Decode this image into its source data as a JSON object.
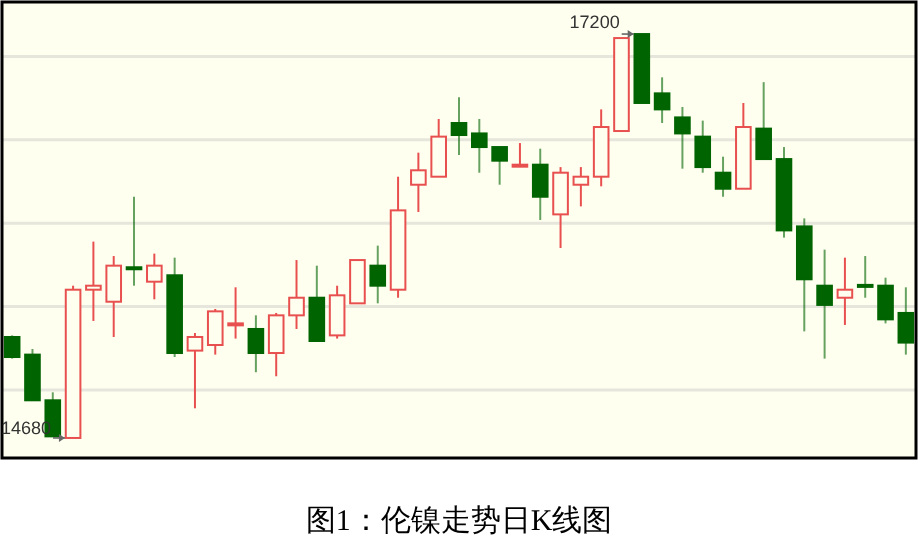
{
  "chart_data": {
    "type": "candlestick",
    "categories": [
      null,
      null,
      null,
      null,
      null,
      null,
      null,
      null,
      null,
      null,
      null,
      null,
      null,
      null,
      null,
      null,
      null,
      null,
      null,
      null,
      null,
      null,
      null,
      null,
      null,
      null,
      null,
      null,
      null,
      null,
      null,
      null,
      null,
      null,
      null,
      null,
      null,
      null,
      null,
      null,
      null,
      null,
      null,
      null,
      null
    ],
    "ohlc": [
      [
        15310,
        15320,
        15175,
        15185
      ],
      [
        15200,
        15235,
        14915,
        14915
      ],
      [
        14915,
        14965,
        14690,
        14690
      ],
      [
        14680,
        15630,
        14680,
        15605
      ],
      [
        15605,
        15905,
        15410,
        15630
      ],
      [
        15530,
        15815,
        15310,
        15755
      ],
      [
        15745,
        16185,
        15630,
        15740
      ],
      [
        15655,
        15830,
        15545,
        15755
      ],
      [
        15695,
        15805,
        15185,
        15210
      ],
      [
        15225,
        15335,
        14865,
        15310
      ],
      [
        15260,
        15485,
        15200,
        15470
      ],
      [
        15390,
        15620,
        15300,
        15395
      ],
      [
        15360,
        15445,
        15090,
        15210
      ],
      [
        15210,
        15460,
        15065,
        15445
      ],
      [
        15445,
        15790,
        15360,
        15555
      ],
      [
        15555,
        15755,
        15285,
        15285
      ],
      [
        15320,
        15630,
        15300,
        15570
      ],
      [
        15520,
        15790,
        15520,
        15790
      ],
      [
        15755,
        15880,
        15520,
        15630
      ],
      [
        15605,
        16310,
        15555,
        16100
      ],
      [
        16260,
        16460,
        16090,
        16350
      ],
      [
        16310,
        16670,
        16310,
        16560
      ],
      [
        16645,
        16805,
        16445,
        16570
      ],
      [
        16580,
        16670,
        16335,
        16495
      ],
      [
        16495,
        16495,
        16260,
        16410
      ],
      [
        16380,
        16520,
        16370,
        16385
      ],
      [
        16385,
        16485,
        16040,
        16185
      ],
      [
        16075,
        16370,
        15865,
        16335
      ],
      [
        16260,
        16370,
        16125,
        16310
      ],
      [
        16310,
        16730,
        16250,
        16620
      ],
      [
        16595,
        17175,
        16595,
        17175
      ],
      [
        17200,
        17200,
        16770,
        16770
      ],
      [
        16830,
        16930,
        16645,
        16730
      ],
      [
        16680,
        16745,
        16360,
        16580
      ],
      [
        16560,
        16660,
        16335,
        16370
      ],
      [
        16335,
        16435,
        16185,
        16235
      ],
      [
        16235,
        16770,
        16235,
        16620
      ],
      [
        16610,
        16900,
        16420,
        16420
      ],
      [
        16420,
        16495,
        15930,
        15975
      ],
      [
        16000,
        16050,
        15345,
        15670
      ],
      [
        15630,
        15855,
        15175,
        15510
      ],
      [
        15555,
        15805,
        15385,
        15605
      ],
      [
        15635,
        15815,
        15555,
        15630
      ],
      [
        15630,
        15680,
        15395,
        15420
      ],
      [
        15460,
        15620,
        15200,
        15275
      ]
    ],
    "colors": [
      "#006400",
      "#006400",
      "#006400",
      "#e8504f",
      "#e8504f",
      "#e8504f",
      "#006400",
      "#e8504f",
      "#006400",
      "#e8504f",
      "#e8504f",
      "#e8504f",
      "#006400",
      "#e8504f",
      "#e8504f",
      "#006400",
      "#e8504f",
      "#e8504f",
      "#006400",
      "#e8504f",
      "#e8504f",
      "#e8504f",
      "#006400",
      "#006400",
      "#006400",
      "#e8504f",
      "#006400",
      "#e8504f",
      "#e8504f",
      "#e8504f",
      "#e8504f",
      "#006400",
      "#006400",
      "#006400",
      "#006400",
      "#006400",
      "#e8504f",
      "#006400",
      "#006400",
      "#006400",
      "#006400",
      "#e8504f",
      "#006400",
      "#006400",
      "#006400"
    ],
    "ylim": [
      14555,
      17400
    ],
    "yticks": [
      {
        "value": 14980,
        "label": null
      },
      {
        "value": 15500,
        "label": null
      },
      {
        "value": 16020,
        "label": null
      },
      {
        "value": 16540,
        "label": null
      },
      {
        "value": 17060,
        "label": null
      }
    ],
    "grid": "y",
    "annotations": [
      "17200",
      "14680",
      "图1：伦镍走势日K线图"
    ]
  }
}
